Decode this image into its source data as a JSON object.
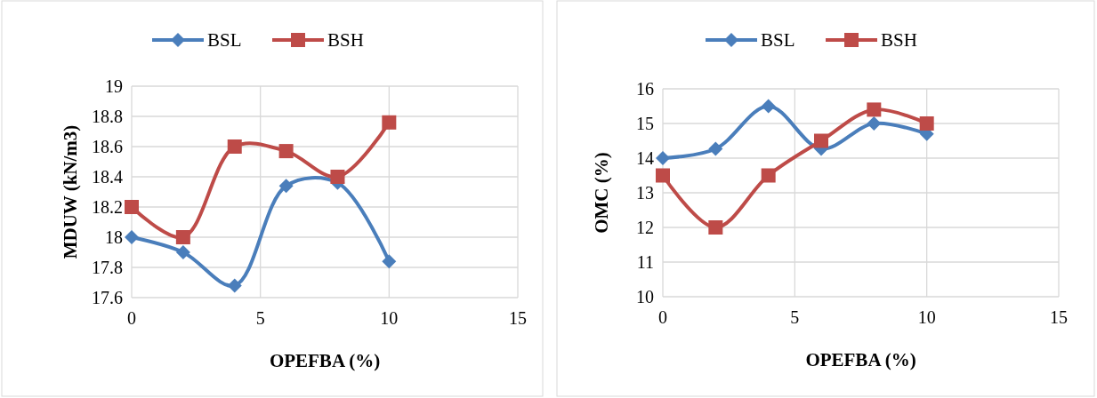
{
  "chart_data": [
    {
      "type": "line",
      "xlabel": "OPEFBA (%)",
      "ylabel": "MDUW (kN/m3)",
      "x": [
        0,
        2,
        4,
        6,
        8,
        10
      ],
      "xlim": [
        0,
        15
      ],
      "xticks": [
        0,
        5,
        10,
        15
      ],
      "ylim": [
        17.6,
        19
      ],
      "yticks": [
        17.6,
        17.8,
        18,
        18.2,
        18.4,
        18.6,
        18.8,
        19
      ],
      "grid": true,
      "legend": "top",
      "series": [
        {
          "name": "BSL",
          "color": "#4a7ebb",
          "marker": "diamond",
          "values": [
            18.0,
            17.9,
            17.68,
            18.34,
            18.36,
            17.84
          ]
        },
        {
          "name": "BSH",
          "color": "#be4b48",
          "marker": "square",
          "values": [
            18.2,
            18.0,
            18.6,
            18.57,
            18.4,
            18.76
          ]
        }
      ]
    },
    {
      "type": "line",
      "xlabel": "OPEFBA (%)",
      "ylabel": "OMC (%)",
      "x": [
        0,
        2,
        4,
        6,
        8,
        10
      ],
      "xlim": [
        0,
        15
      ],
      "xticks": [
        0,
        5,
        10,
        15
      ],
      "ylim": [
        10,
        16
      ],
      "yticks": [
        10,
        11,
        12,
        13,
        14,
        15,
        16
      ],
      "grid": true,
      "legend": "top",
      "series": [
        {
          "name": "BSL",
          "color": "#4a7ebb",
          "marker": "diamond",
          "values": [
            14.0,
            14.27,
            15.5,
            14.27,
            15.0,
            14.7
          ]
        },
        {
          "name": "BSH",
          "color": "#be4b48",
          "marker": "square",
          "values": [
            13.5,
            12.0,
            13.5,
            14.5,
            15.4,
            15.0
          ]
        }
      ]
    }
  ]
}
